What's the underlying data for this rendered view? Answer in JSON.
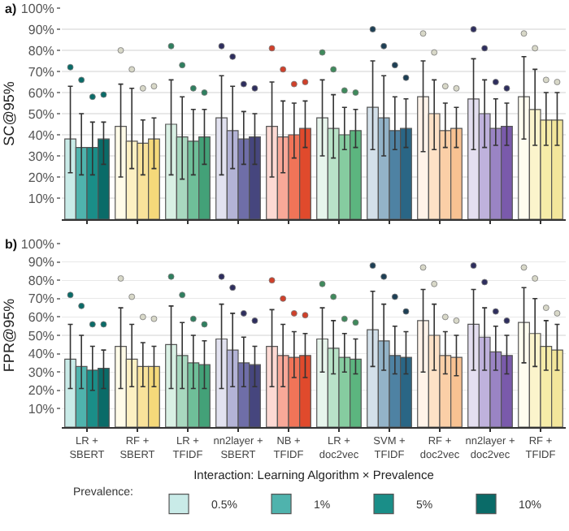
{
  "chart_data": [
    {
      "type": "bar",
      "ylabel": "SC@95%",
      "annotations": [
        "a)"
      ],
      "tick_labels": "y",
      "grid": "y",
      "legend": false,
      "marker": "circle",
      "categories": [
        null,
        null,
        null,
        null,
        null,
        null,
        null,
        null,
        null,
        null
      ],
      "ylim": [
        0,
        100
      ],
      "yticks": [
        {
          "value": 10,
          "label": "10%"
        },
        {
          "value": 20,
          "label": "20%"
        },
        {
          "value": 30,
          "label": "30%"
        },
        {
          "value": 40,
          "label": "40%"
        },
        {
          "value": 50,
          "label": "50%"
        },
        {
          "value": 60,
          "label": "60%"
        },
        {
          "value": 70,
          "label": "70%"
        },
        {
          "value": 80,
          "label": "80%"
        },
        {
          "value": 90,
          "label": "90%"
        },
        {
          "value": 100,
          "label": "100%"
        }
      ],
      "series": [
        {
          "colors": [
            "#c9ebe8",
            "#fffbe8",
            "#d9f0e4",
            "#e2e2f0",
            "#fdd9d3",
            "#e7f5ec",
            "#d3e0ea",
            "#fff3e9",
            "#e4dff0",
            "#fffdf0"
          ],
          "values": [
            38,
            44,
            45,
            48,
            44,
            48,
            53,
            58,
            57,
            58
          ],
          "errors": [
            [
              22,
              63
            ],
            [
              20,
              64
            ],
            [
              21,
              66
            ],
            [
              21,
              68
            ],
            [
              20,
              65
            ],
            [
              30,
              66
            ],
            [
              33,
              75
            ],
            [
              32,
              75
            ],
            [
              33,
              76
            ],
            [
              38,
              77
            ]
          ]
        },
        {
          "colors": [
            "#4fb3ad",
            "#fdf0c2",
            "#a8d8bf",
            "#b3b3d6",
            "#f8a898",
            "#b9e2c8",
            "#93b3c8",
            "#fde1c6",
            "#bfb2dc",
            "#fbf4cc"
          ],
          "values": [
            34,
            37,
            39,
            42,
            39,
            43,
            48,
            50,
            50,
            52
          ],
          "errors": [
            [
              21,
              50
            ],
            [
              24,
              62
            ],
            [
              19,
              58
            ],
            [
              24,
              63
            ],
            [
              22,
              56
            ],
            [
              29,
              59
            ],
            [
              30,
              68
            ],
            [
              33,
              66
            ],
            [
              34,
              66
            ],
            [
              35,
              71
            ]
          ]
        },
        {
          "colors": [
            "#1a8e88",
            "#f9e29a",
            "#6fbf99",
            "#6f6ea8",
            "#f07458",
            "#86cca0",
            "#4e82a3",
            "#fbcfa7",
            "#9a84c4",
            "#f6eca8"
          ],
          "values": [
            34,
            36,
            37,
            38,
            40,
            40,
            42,
            42,
            43,
            47
          ],
          "errors": [
            [
              21,
              46
            ],
            [
              21,
              47
            ],
            [
              21,
              52
            ],
            [
              26,
              51
            ],
            [
              29,
              55
            ],
            [
              33,
              53
            ],
            [
              33,
              58
            ],
            [
              34,
              55
            ],
            [
              35,
              57
            ],
            [
              35,
              60
            ]
          ]
        },
        {
          "colors": [
            "#0a6b68",
            "#f5d97a",
            "#43a178",
            "#46467e",
            "#e04a2c",
            "#5cb57f",
            "#2a6685",
            "#f8c292",
            "#7a5aab",
            "#f3e69b"
          ],
          "values": [
            38,
            38,
            39,
            39,
            43,
            42,
            43,
            43,
            44,
            47
          ],
          "errors": [
            [
              26,
              46
            ],
            [
              24,
              48
            ],
            [
              26,
              52
            ],
            [
              26,
              50
            ],
            [
              34,
              56
            ],
            [
              34,
              52
            ],
            [
              34,
              57
            ],
            [
              34,
              53
            ],
            [
              35,
              55
            ],
            [
              35,
              60
            ]
          ]
        },
        {
          "type": "scatter",
          "colors": [
            "#0a6b68",
            "#d8d8c8",
            "#2f7f5f",
            "#2e2e5e",
            "#d0402a",
            "#3f8a5c",
            "#1d3f55",
            "#d8d8c8",
            "#2e2e5e",
            "#d8d8c8"
          ],
          "values": [
            72,
            80,
            82,
            82,
            81,
            79,
            90,
            88,
            90,
            88
          ]
        },
        {
          "type": "scatter",
          "colors": [
            "#0a6b68",
            "#d8d8c8",
            "#2f7f5f",
            "#2e2e5e",
            "#d0402a",
            "#3f8a5c",
            "#1d3f55",
            "#d8d8c8",
            "#2e2e5e",
            "#d8d8c8"
          ],
          "values": [
            66,
            71,
            73,
            77,
            71,
            71,
            82,
            79,
            81,
            81
          ]
        },
        {
          "type": "scatter",
          "colors": [
            "#0a6b68",
            "#d8d8c8",
            "#2f7f5f",
            "#2e2e5e",
            "#d0402a",
            "#3f8a5c",
            "#1d3f55",
            "#d8d8c8",
            "#2e2e5e",
            "#d8d8c8"
          ],
          "values": [
            58,
            62,
            62,
            64,
            64,
            61,
            73,
            63,
            65,
            66
          ]
        },
        {
          "type": "scatter",
          "colors": [
            "#0a6b68",
            "#d8d8c8",
            "#2f7f5f",
            "#2e2e5e",
            "#d0402a",
            "#3f8a5c",
            "#1d3f55",
            "#d8d8c8",
            "#2e2e5e",
            "#d8d8c8"
          ],
          "values": [
            59,
            63,
            60,
            62,
            65,
            60,
            67,
            62,
            62,
            65
          ]
        }
      ]
    },
    {
      "type": "bar",
      "ylabel": "FPR@95%",
      "xlabel": "Interaction: Learning Algorithm × Prevalence",
      "legend_title": "Prevalence:",
      "annotations": [
        "b)"
      ],
      "grid": "y",
      "legend": "bottom",
      "marker": "circle",
      "categories": [
        "LR +\nSBERT",
        "RF +\nSBERT",
        "LR +\nTFIDF",
        "nn2layer +\nSBERT",
        "NB +\nTFIDF",
        "LR +\ndoc2vec",
        "SVM +\nTFIDF",
        "RF +\ndoc2vec",
        "nn2layer +\ndoc2vec",
        "RF +\nTFIDF"
      ],
      "ylim": [
        0,
        100
      ],
      "yticks": [
        {
          "value": 10,
          "label": "10%"
        },
        {
          "value": 20,
          "label": "20%"
        },
        {
          "value": 30,
          "label": "30%"
        },
        {
          "value": 40,
          "label": "40%"
        },
        {
          "value": 50,
          "label": "50%"
        },
        {
          "value": 60,
          "label": "60%"
        },
        {
          "value": 70,
          "label": "70%"
        },
        {
          "value": 80,
          "label": "80%"
        },
        {
          "value": 90,
          "label": "90%"
        },
        {
          "value": 100,
          "label": "100%"
        }
      ],
      "series": [
        {
          "name": "0.5%",
          "colors": [
            "#c9ebe8",
            "#fffbe8",
            "#d9f0e4",
            "#e2e2f0",
            "#fdd9d3",
            "#e7f5ec",
            "#d3e0ea",
            "#fff3e9",
            "#e4dff0",
            "#fffdf0"
          ],
          "values": [
            37,
            44,
            45,
            48,
            44,
            48,
            53,
            58,
            56,
            57
          ],
          "errors": [
            [
              21,
              56
            ],
            [
              21,
              65
            ],
            [
              21,
              66
            ],
            [
              21,
              67
            ],
            [
              22,
              64
            ],
            [
              30,
              65
            ],
            [
              33,
              74
            ],
            [
              30,
              75
            ],
            [
              31,
              75
            ],
            [
              35,
              76
            ]
          ]
        },
        {
          "name": "1%",
          "colors": [
            "#4fb3ad",
            "#fdf0c2",
            "#a8d8bf",
            "#b3b3d6",
            "#f8a898",
            "#b9e2c8",
            "#93b3c8",
            "#fde1c6",
            "#bfb2dc",
            "#fbf4cc"
          ],
          "values": [
            33,
            37,
            39,
            42,
            39,
            43,
            47,
            50,
            49,
            51
          ],
          "errors": [
            [
              21,
              50
            ],
            [
              22,
              56
            ],
            [
              21,
              57
            ],
            [
              22,
              62
            ],
            [
              22,
              56
            ],
            [
              29,
              58
            ],
            [
              31,
              67
            ],
            [
              31,
              67
            ],
            [
              31,
              65
            ],
            [
              33,
              70
            ]
          ]
        },
        {
          "name": "5%",
          "colors": [
            "#1a8e88",
            "#f9e29a",
            "#6fbf99",
            "#6f6ea8",
            "#f07458",
            "#86cca0",
            "#4e82a3",
            "#fbcfa7",
            "#9a84c4",
            "#f6eca8"
          ],
          "values": [
            31,
            33,
            35,
            35,
            38,
            38,
            39,
            39,
            41,
            44
          ],
          "errors": [
            [
              20,
              44
            ],
            [
              22,
              46
            ],
            [
              21,
              50
            ],
            [
              22,
              49
            ],
            [
              27,
              52
            ],
            [
              30,
              51
            ],
            [
              29,
              55
            ],
            [
              29,
              52
            ],
            [
              31,
              55
            ],
            [
              31,
              58
            ]
          ]
        },
        {
          "name": "10%",
          "colors": [
            "#0a6b68",
            "#f5d97a",
            "#43a178",
            "#46467e",
            "#e04a2c",
            "#5cb57f",
            "#2a6685",
            "#f8c292",
            "#7a5aab",
            "#f3e69b"
          ],
          "values": [
            32,
            33,
            34,
            34,
            39,
            37,
            38,
            38,
            39,
            42
          ],
          "errors": [
            [
              21,
              42
            ],
            [
              22,
              44
            ],
            [
              21,
              47
            ],
            [
              22,
              44
            ],
            [
              27,
              51
            ],
            [
              29,
              48
            ],
            [
              29,
              52
            ],
            [
              28,
              50
            ],
            [
              29,
              50
            ],
            [
              31,
              56
            ]
          ]
        },
        {
          "type": "scatter",
          "colors": [
            "#0a6b68",
            "#d8d8c8",
            "#2f7f5f",
            "#2e2e5e",
            "#d0402a",
            "#3f8a5c",
            "#1d3f55",
            "#d8d8c8",
            "#2e2e5e",
            "#d8d8c8"
          ],
          "values": [
            72,
            81,
            82,
            82,
            80,
            78,
            88,
            87,
            88,
            87
          ]
        },
        {
          "type": "scatter",
          "colors": [
            "#0a6b68",
            "#d8d8c8",
            "#2f7f5f",
            "#2e2e5e",
            "#d0402a",
            "#3f8a5c",
            "#1d3f55",
            "#d8d8c8",
            "#2e2e5e",
            "#d8d8c8"
          ],
          "values": [
            66,
            71,
            72,
            76,
            70,
            71,
            82,
            78,
            79,
            81
          ]
        },
        {
          "type": "scatter",
          "colors": [
            "#0a6b68",
            "#d8d8c8",
            "#2f7f5f",
            "#2e2e5e",
            "#d0402a",
            "#3f8a5c",
            "#1d3f55",
            "#d8d8c8",
            "#2e2e5e",
            "#d8d8c8"
          ],
          "values": [
            56,
            60,
            59,
            62,
            62,
            59,
            71,
            60,
            63,
            65
          ]
        },
        {
          "type": "scatter",
          "colors": [
            "#0a6b68",
            "#d8d8c8",
            "#2f7f5f",
            "#2e2e5e",
            "#d0402a",
            "#3f8a5c",
            "#1d3f55",
            "#d8d8c8",
            "#2e2e5e",
            "#d8d8c8"
          ],
          "values": [
            56,
            59,
            56,
            58,
            61,
            57,
            63,
            58,
            58,
            62
          ]
        }
      ]
    }
  ]
}
